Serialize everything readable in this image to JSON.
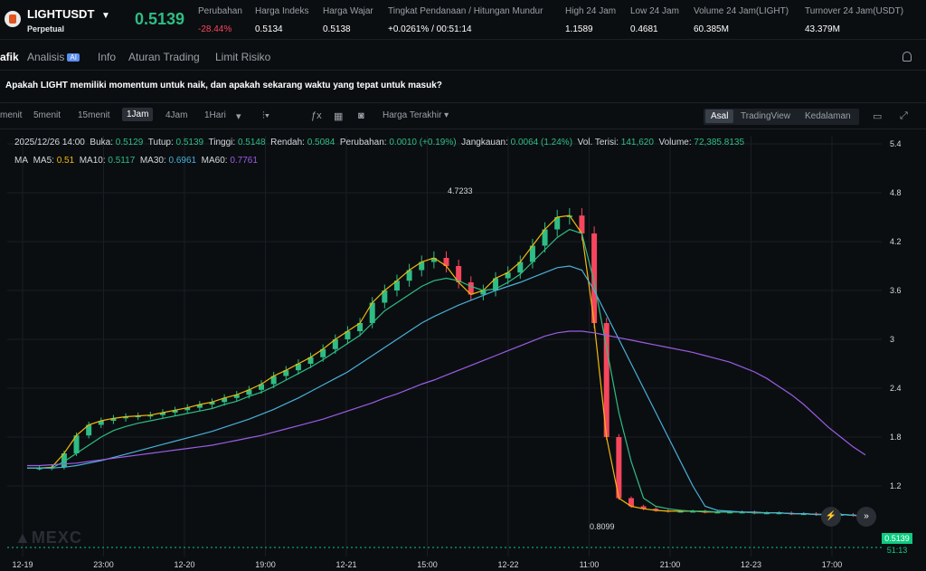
{
  "header": {
    "symbol": "LIGHTUSDT",
    "subtitle": "Perpetual",
    "last_price": "0.5139",
    "stats": [
      {
        "label": "Perubahan",
        "value": "-28.44%",
        "negative": true
      },
      {
        "label": "Harga Indeks",
        "value": "0.5134"
      },
      {
        "label": "Harga Wajar",
        "value": "0.5138"
      },
      {
        "label": "Tingkat Pendanaan / Hitungan Mundur",
        "value": "+0.0261% / 00:51:14"
      },
      {
        "label": "High 24 Jam",
        "value": "1.1589"
      },
      {
        "label": "Low 24 Jam",
        "value": "0.4681"
      },
      {
        "label": "Volume 24 Jam(LIGHT)",
        "value": "60.385M"
      },
      {
        "label": "Turnover 24 Jam(USDT)",
        "value": "43.379M"
      }
    ]
  },
  "tabs": [
    "afik",
    "Analisis",
    "Info",
    "Aturan Trading",
    "Limit Risiko"
  ],
  "ai_badge": "AI",
  "question": "Apakah LIGHT memiliki momentum untuk naik, dan apakah sekarang waktu yang tepat untuk masuk?",
  "toolbar": {
    "timeframes": [
      "menit",
      "5menit",
      "15menit",
      "1Jam",
      "4Jam",
      "1Hari"
    ],
    "active_timeframe": "1Jam",
    "price_type": "Harga Terakhir",
    "views": [
      "Asal",
      "TradingView",
      "Kedalaman"
    ],
    "active_view": "Asal"
  },
  "ohlc_legend": {
    "date": "2025/12/26 14:00",
    "buka_label": "Buka:",
    "buka": "0.5129",
    "tutup_label": "Tutup:",
    "tutup": "0.5139",
    "tinggi_label": "Tinggi:",
    "tinggi": "0.5148",
    "rendah_label": "Rendah:",
    "rendah": "0.5084",
    "perubahan_label": "Perubahan:",
    "perubahan": "0.0010 (+0.19%)",
    "jangkauan_label": "Jangkauan:",
    "jangkauan": "0.0064 (1.24%)",
    "vol_label": "Vol. Terisi:",
    "vol": "141,620",
    "volume_label": "Volume:",
    "volume": "72,385.8135"
  },
  "ma_legend": {
    "label": "MA",
    "items": [
      {
        "name": "MA5:",
        "value": "0.51",
        "color": "#f0b90b"
      },
      {
        "name": "MA10:",
        "value": "0.5117",
        "color": "#2ebd85"
      },
      {
        "name": "MA30:",
        "value": "0.6961",
        "color": "#4ab0d9"
      },
      {
        "name": "MA60:",
        "value": "0.7761",
        "color": "#9b5de5"
      }
    ]
  },
  "chart_data": {
    "type": "candlestick",
    "y_ticks": [
      "5.4",
      "4.8",
      "4.2",
      "3.6",
      "3",
      "2.4",
      "1.8",
      "1.2"
    ],
    "x_ticks": [
      "12-19",
      "23:00",
      "12-20",
      "19:00",
      "12-21",
      "15:00",
      "12-22",
      "11:00",
      "21:00",
      "12-23",
      "17:00"
    ],
    "ylim": [
      0.5,
      5.5
    ],
    "high_annotation": "4.7233",
    "low_annotation": "0.8099",
    "last_price": "0.5139",
    "last_price_sub": "51:13",
    "up_color": "#2ebd85",
    "down_color": "#f6465d",
    "ma5": [
      1.42,
      1.42,
      1.43,
      1.6,
      1.82,
      1.95,
      2.0,
      2.03,
      2.05,
      2.06,
      2.07,
      2.1,
      2.13,
      2.16,
      2.2,
      2.23,
      2.28,
      2.32,
      2.38,
      2.45,
      2.55,
      2.62,
      2.7,
      2.78,
      2.88,
      3.0,
      3.1,
      3.2,
      3.45,
      3.6,
      3.72,
      3.85,
      3.95,
      4.0,
      3.9,
      3.7,
      3.55,
      3.6,
      3.75,
      3.82,
      3.95,
      4.15,
      4.35,
      4.5,
      4.52,
      4.3,
      3.2,
      1.8,
      1.05,
      0.95,
      0.92,
      0.9,
      0.89,
      0.89,
      0.89,
      0.88,
      0.88,
      0.88,
      0.88,
      0.87,
      0.87,
      0.87,
      0.86,
      0.86,
      0.85,
      0.85,
      0.85,
      0.84,
      0.83
    ],
    "ma10": [
      1.42,
      1.42,
      1.42,
      1.5,
      1.6,
      1.7,
      1.8,
      1.88,
      1.93,
      1.97,
      2.0,
      2.03,
      2.06,
      2.09,
      2.12,
      2.15,
      2.2,
      2.24,
      2.3,
      2.35,
      2.42,
      2.5,
      2.58,
      2.66,
      2.75,
      2.85,
      2.95,
      3.05,
      3.2,
      3.35,
      3.45,
      3.55,
      3.65,
      3.72,
      3.75,
      3.72,
      3.65,
      3.6,
      3.62,
      3.7,
      3.8,
      3.95,
      4.1,
      4.25,
      4.35,
      4.3,
      3.7,
      2.9,
      2.1,
      1.5,
      1.05,
      0.95,
      0.92,
      0.9,
      0.89,
      0.89,
      0.88,
      0.88,
      0.88,
      0.87,
      0.87,
      0.87,
      0.86,
      0.86,
      0.85,
      0.85,
      0.85,
      0.84,
      0.83
    ],
    "ma30": [
      1.42,
      1.42,
      1.42,
      1.43,
      1.45,
      1.48,
      1.51,
      1.55,
      1.59,
      1.63,
      1.67,
      1.71,
      1.75,
      1.79,
      1.83,
      1.87,
      1.92,
      1.97,
      2.02,
      2.08,
      2.14,
      2.21,
      2.28,
      2.36,
      2.44,
      2.52,
      2.6,
      2.7,
      2.8,
      2.9,
      3.0,
      3.1,
      3.2,
      3.28,
      3.35,
      3.42,
      3.48,
      3.54,
      3.6,
      3.65,
      3.7,
      3.76,
      3.82,
      3.88,
      3.9,
      3.85,
      3.6,
      3.3,
      3.0,
      2.7,
      2.4,
      2.1,
      1.8,
      1.5,
      1.2,
      0.95,
      0.9,
      0.89,
      0.88,
      0.88,
      0.87,
      0.87,
      0.86,
      0.86,
      0.85,
      0.85,
      0.85,
      0.84,
      0.83
    ],
    "ma60": [
      1.45,
      1.45,
      1.46,
      1.47,
      1.48,
      1.5,
      1.52,
      1.54,
      1.56,
      1.58,
      1.6,
      1.62,
      1.64,
      1.66,
      1.68,
      1.7,
      1.73,
      1.76,
      1.79,
      1.82,
      1.86,
      1.9,
      1.94,
      1.98,
      2.02,
      2.07,
      2.12,
      2.17,
      2.22,
      2.28,
      2.33,
      2.39,
      2.45,
      2.5,
      2.56,
      2.62,
      2.68,
      2.74,
      2.8,
      2.86,
      2.92,
      2.98,
      3.04,
      3.08,
      3.1,
      3.1,
      3.08,
      3.05,
      3.02,
      2.99,
      2.96,
      2.93,
      2.9,
      2.87,
      2.84,
      2.8,
      2.76,
      2.72,
      2.66,
      2.6,
      2.52,
      2.42,
      2.32,
      2.2,
      2.06,
      1.92,
      1.8,
      1.68,
      1.58
    ]
  }
}
